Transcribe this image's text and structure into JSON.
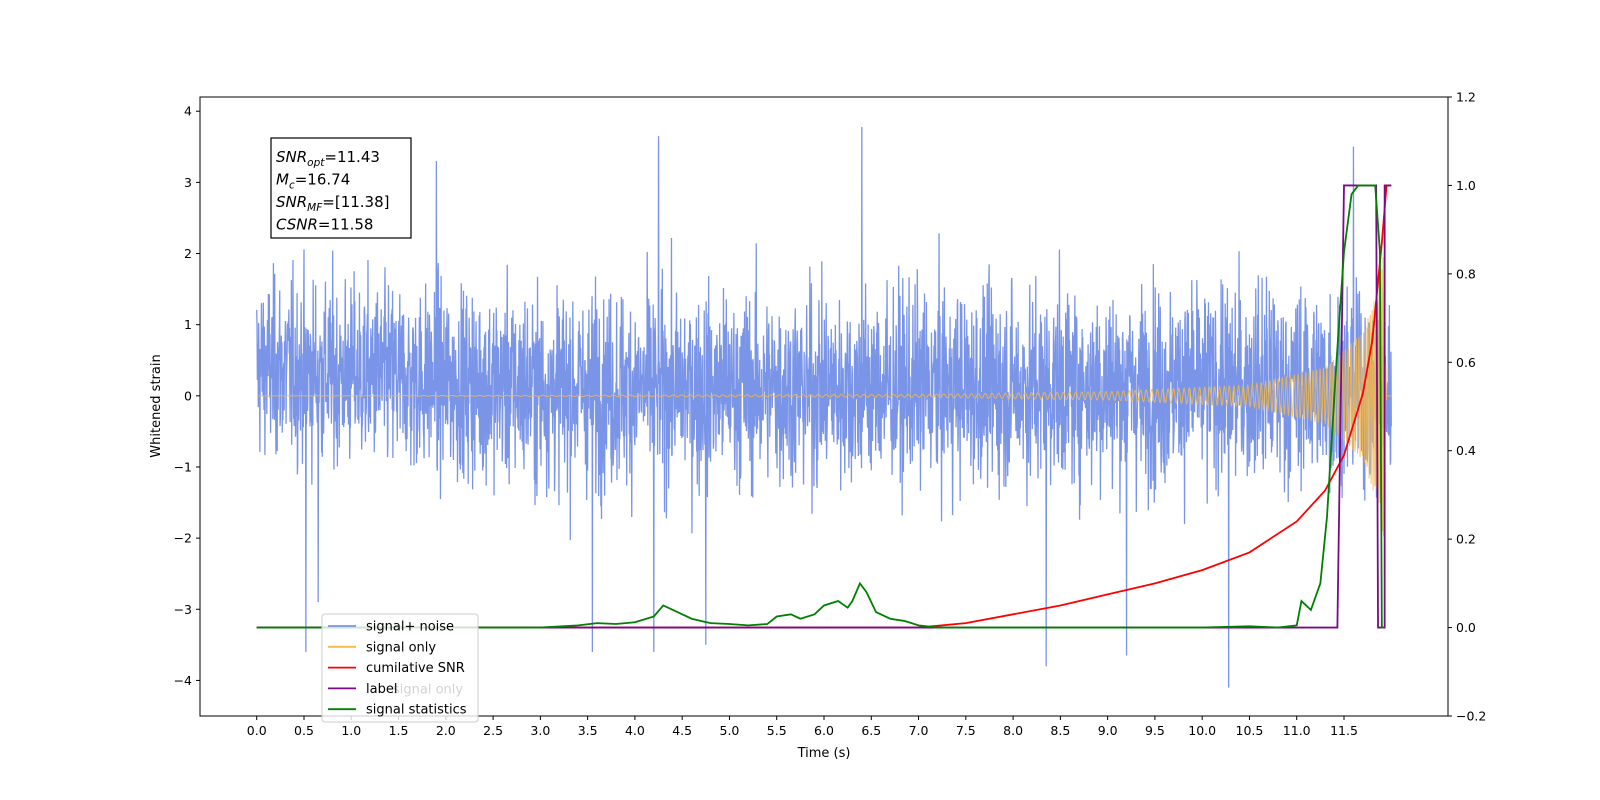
{
  "chart_data": {
    "type": "line",
    "xlabel": "Time (s)",
    "ylabel": "Whitened strain",
    "xlim": [
      -0.6,
      12.6
    ],
    "ylim": [
      -4.5,
      4.2
    ],
    "ylim_right": [
      -0.2,
      1.2
    ],
    "xticks": [
      0.0,
      0.5,
      1.0,
      1.5,
      2.0,
      2.5,
      3.0,
      3.5,
      4.0,
      4.5,
      5.0,
      5.5,
      6.0,
      6.5,
      7.0,
      7.5,
      8.0,
      8.5,
      9.0,
      9.5,
      10.0,
      10.5,
      11.0,
      11.5
    ],
    "xtick_labels": [
      "0.0",
      "0.5",
      "1.0",
      "1.5",
      "2.0",
      "2.5",
      "3.0",
      "3.5",
      "4.0",
      "4.5",
      "5.0",
      "5.5",
      "6.0",
      "6.5",
      "7.0",
      "7.5",
      "8.0",
      "8.5",
      "9.0",
      "9.5",
      "10.0",
      "10.5",
      "11.0",
      "11.5"
    ],
    "yticks_left": [
      -4,
      -3,
      -2,
      -1,
      0,
      1,
      2,
      3,
      4
    ],
    "ytick_labels_left": [
      "−4",
      "−3",
      "−2",
      "−1",
      "0",
      "1",
      "2",
      "3",
      "4"
    ],
    "yticks_right": [
      -0.2,
      0.0,
      0.2,
      0.4,
      0.6,
      0.8,
      1.0,
      1.2
    ],
    "ytick_labels_right": [
      "−0.2",
      "0.0",
      "0.2",
      "0.4",
      "0.6",
      "0.8",
      "1.0",
      "1.2"
    ],
    "grid": false,
    "legend_position": "bottom-left",
    "stats_box": {
      "lines": [
        {
          "main": "SNR",
          "sub": "opt",
          "rest": "=11.43"
        },
        {
          "main": "M",
          "sub": "c",
          "rest": "=16.74"
        },
        {
          "main": "SNR",
          "sub": "MF",
          "rest": "=[11.38]"
        },
        {
          "main": "CSNR",
          "sub": "",
          "rest": "=11.58"
        }
      ]
    },
    "series": [
      {
        "name": "signal+ noise",
        "axis": "left",
        "color": "#7a95e8",
        "t_range": [
          0.0,
          12.0
        ],
        "noise_envelope": [
          [
            0.0,
            2.3,
            -1.5
          ],
          [
            3.0,
            2.2,
            -2.0
          ],
          [
            6.0,
            2.2,
            -2.0
          ],
          [
            11.0,
            2.3,
            -2.0
          ],
          [
            12.0,
            2.1,
            -2.0
          ]
        ],
        "peak_excursions": [
          {
            "t": 0.52,
            "y": -3.6
          },
          {
            "t": 0.65,
            "y": -2.9
          },
          {
            "t": 1.9,
            "y": 3.3
          },
          {
            "t": 3.55,
            "y": -3.6
          },
          {
            "t": 4.2,
            "y": -3.6
          },
          {
            "t": 4.25,
            "y": 3.65
          },
          {
            "t": 4.75,
            "y": -3.5
          },
          {
            "t": 6.4,
            "y": 3.78
          },
          {
            "t": 8.35,
            "y": -3.8
          },
          {
            "t": 9.2,
            "y": -3.65
          },
          {
            "t": 10.28,
            "y": -4.1
          },
          {
            "t": 11.6,
            "y": 3.5
          }
        ]
      },
      {
        "name": "signal only",
        "axis": "left",
        "color": "#f5b84a",
        "t_range": [
          0.0,
          12.0
        ],
        "amplitude_envelope": [
          [
            0.0,
            0.0
          ],
          [
            7.0,
            0.02
          ],
          [
            9.0,
            0.06
          ],
          [
            10.5,
            0.15
          ],
          [
            11.3,
            0.4
          ],
          [
            11.7,
            0.9
          ],
          [
            11.85,
            1.5
          ],
          [
            11.92,
            2.0
          ],
          [
            11.95,
            0.0
          ],
          [
            12.0,
            0.0
          ]
        ]
      },
      {
        "name": "cumilative SNR",
        "axis": "right",
        "color": "#ff0000",
        "points": [
          [
            0.0,
            0.0
          ],
          [
            7.0,
            0.0
          ],
          [
            7.5,
            0.01
          ],
          [
            8.0,
            0.03
          ],
          [
            8.5,
            0.05
          ],
          [
            9.0,
            0.075
          ],
          [
            9.5,
            0.1
          ],
          [
            10.0,
            0.13
          ],
          [
            10.5,
            0.17
          ],
          [
            11.0,
            0.24
          ],
          [
            11.3,
            0.31
          ],
          [
            11.5,
            0.39
          ],
          [
            11.7,
            0.53
          ],
          [
            11.8,
            0.65
          ],
          [
            11.9,
            0.87
          ],
          [
            11.95,
            1.0
          ],
          [
            12.0,
            1.0
          ]
        ]
      },
      {
        "name": "label",
        "axis": "right",
        "color": "#7a0a8a",
        "points": [
          [
            0.0,
            0.0
          ],
          [
            11.43,
            0.0
          ],
          [
            11.5,
            1.0
          ],
          [
            11.84,
            1.0
          ],
          [
            11.86,
            0.0
          ],
          [
            11.93,
            0.0
          ],
          [
            11.93,
            1.0
          ],
          [
            12.0,
            1.0
          ]
        ]
      },
      {
        "name": "signal statistics",
        "axis": "right",
        "color": "#008000",
        "points": [
          [
            0.0,
            0.0
          ],
          [
            3.0,
            0.0
          ],
          [
            3.4,
            0.005
          ],
          [
            3.6,
            0.01
          ],
          [
            3.8,
            0.008
          ],
          [
            4.0,
            0.012
          ],
          [
            4.2,
            0.025
          ],
          [
            4.3,
            0.05
          ],
          [
            4.45,
            0.035
          ],
          [
            4.6,
            0.02
          ],
          [
            4.7,
            0.015
          ],
          [
            4.8,
            0.01
          ],
          [
            5.0,
            0.008
          ],
          [
            5.2,
            0.005
          ],
          [
            5.4,
            0.008
          ],
          [
            5.5,
            0.025
          ],
          [
            5.65,
            0.03
          ],
          [
            5.75,
            0.02
          ],
          [
            5.9,
            0.03
          ],
          [
            6.0,
            0.05
          ],
          [
            6.15,
            0.06
          ],
          [
            6.25,
            0.045
          ],
          [
            6.3,
            0.06
          ],
          [
            6.38,
            0.1
          ],
          [
            6.45,
            0.08
          ],
          [
            6.55,
            0.035
          ],
          [
            6.7,
            0.02
          ],
          [
            6.85,
            0.015
          ],
          [
            7.0,
            0.005
          ],
          [
            7.2,
            0.0
          ],
          [
            10.0,
            0.0
          ],
          [
            10.5,
            0.003
          ],
          [
            10.8,
            0.0
          ],
          [
            11.0,
            0.005
          ],
          [
            11.05,
            0.06
          ],
          [
            11.15,
            0.04
          ],
          [
            11.25,
            0.1
          ],
          [
            11.32,
            0.25
          ],
          [
            11.42,
            0.6
          ],
          [
            11.5,
            0.85
          ],
          [
            11.58,
            0.98
          ],
          [
            11.65,
            1.0
          ],
          [
            11.83,
            1.0
          ],
          [
            11.88,
            0.85
          ],
          [
            11.9,
            0.0
          ],
          [
            11.92,
            0.0
          ]
        ]
      }
    ],
    "extra_legend_entry": "signal only"
  }
}
